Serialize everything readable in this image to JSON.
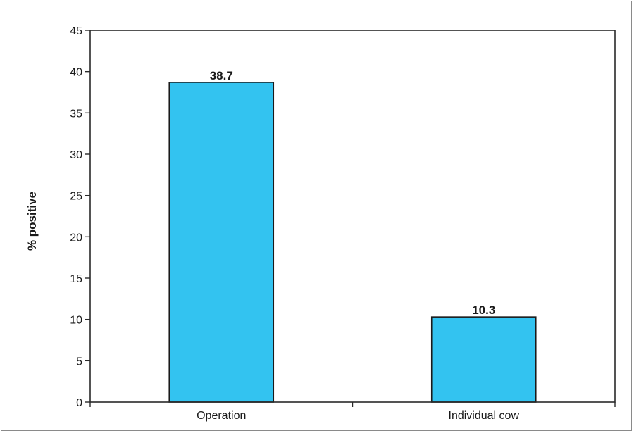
{
  "chart_data": {
    "type": "bar",
    "categories": [
      "Operation",
      "Individual cow"
    ],
    "values": [
      38.7,
      10.3
    ],
    "data_labels": [
      "38.7",
      "10.3"
    ],
    "title": "",
    "xlabel": "",
    "ylabel": "% positive",
    "ylim": [
      0,
      45
    ],
    "yticks": [
      0,
      5,
      10,
      15,
      20,
      25,
      30,
      35,
      40,
      45
    ],
    "grid": false,
    "bar_color": "#33c3f0",
    "bar_edge_color": "#1a1a1a"
  }
}
